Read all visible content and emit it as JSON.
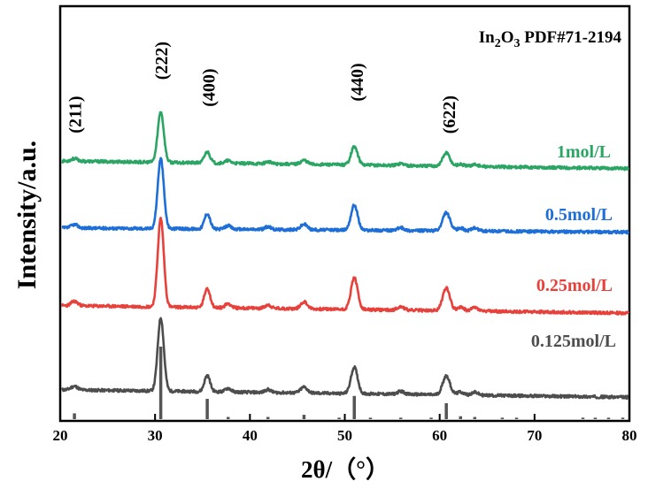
{
  "chart_data": {
    "type": "line",
    "title": "",
    "xlabel": "2θ/（°）",
    "ylabel": "Intensity/a.u.",
    "xlim": [
      20,
      80
    ],
    "x_ticks": [
      "20",
      "30",
      "40",
      "50",
      "60",
      "70",
      "80"
    ],
    "y_ticks": [],
    "grid": false,
    "legend": "right, next to each curve",
    "reference": {
      "label_main": "In",
      "label_sub1": "2",
      "label_mid": "O",
      "label_sub2": "3",
      "label_tail": " PDF#71-2194",
      "color": "#555555",
      "lines": [
        {
          "x": 21.5,
          "h": 8
        },
        {
          "x": 30.6,
          "h": 100
        },
        {
          "x": 35.5,
          "h": 28
        },
        {
          "x": 37.7,
          "h": 3
        },
        {
          "x": 41.9,
          "h": 3
        },
        {
          "x": 45.7,
          "h": 6
        },
        {
          "x": 49.4,
          "h": 2
        },
        {
          "x": 51.0,
          "h": 32
        },
        {
          "x": 52.7,
          "h": 2
        },
        {
          "x": 55.9,
          "h": 2
        },
        {
          "x": 59.1,
          "h": 2
        },
        {
          "x": 60.7,
          "h": 22
        },
        {
          "x": 62.2,
          "h": 4
        },
        {
          "x": 63.7,
          "h": 3
        },
        {
          "x": 66.6,
          "h": 2
        },
        {
          "x": 68.1,
          "h": 2
        },
        {
          "x": 75.1,
          "h": 2
        },
        {
          "x": 76.4,
          "h": 2
        },
        {
          "x": 77.8,
          "h": 2
        },
        {
          "x": 79.3,
          "h": 2
        }
      ]
    },
    "peaks": [
      {
        "x": 21.5,
        "h": 5,
        "w": 0.35
      },
      {
        "x": 30.6,
        "h": 100,
        "w": 0.32
      },
      {
        "x": 35.5,
        "h": 22,
        "w": 0.3
      },
      {
        "x": 37.7,
        "h": 5,
        "w": 0.3
      },
      {
        "x": 41.9,
        "h": 4,
        "w": 0.3
      },
      {
        "x": 45.7,
        "h": 8,
        "w": 0.35
      },
      {
        "x": 51.0,
        "h": 36,
        "w": 0.35
      },
      {
        "x": 55.9,
        "h": 4,
        "w": 0.35
      },
      {
        "x": 60.7,
        "h": 26,
        "w": 0.38
      },
      {
        "x": 62.2,
        "h": 4,
        "w": 0.35
      },
      {
        "x": 63.7,
        "h": 4,
        "w": 0.35
      }
    ],
    "series": [
      {
        "name": "0.125mol/L",
        "color": "#4d4d4d",
        "baseline_start": 24,
        "baseline_end": 17,
        "peak_scale": 0.68,
        "seed": 11
      },
      {
        "name": "0.25mol/L",
        "color": "#e8403a",
        "baseline_start": 102,
        "baseline_end": 95,
        "peak_scale": 0.82,
        "seed": 23
      },
      {
        "name": "0.5mol/L",
        "color": "#1e6ed8",
        "baseline_start": 174,
        "baseline_end": 170,
        "peak_scale": 0.65,
        "seed": 37
      },
      {
        "name": "1mol/L",
        "color": "#2aa564",
        "baseline_start": 236,
        "baseline_end": 229,
        "peak_scale": 0.47,
        "seed": 53
      }
    ],
    "annotations": [
      {
        "text": "(211)",
        "x": 22.2,
        "level": 320
      },
      {
        "text": "(222)",
        "x": 31.3,
        "level": 370
      },
      {
        "text": "(400)",
        "x": 36.3,
        "level": 345
      },
      {
        "text": "(440)",
        "x": 51.9,
        "level": 350
      },
      {
        "text": "(622)",
        "x": 61.6,
        "level": 320
      }
    ]
  }
}
